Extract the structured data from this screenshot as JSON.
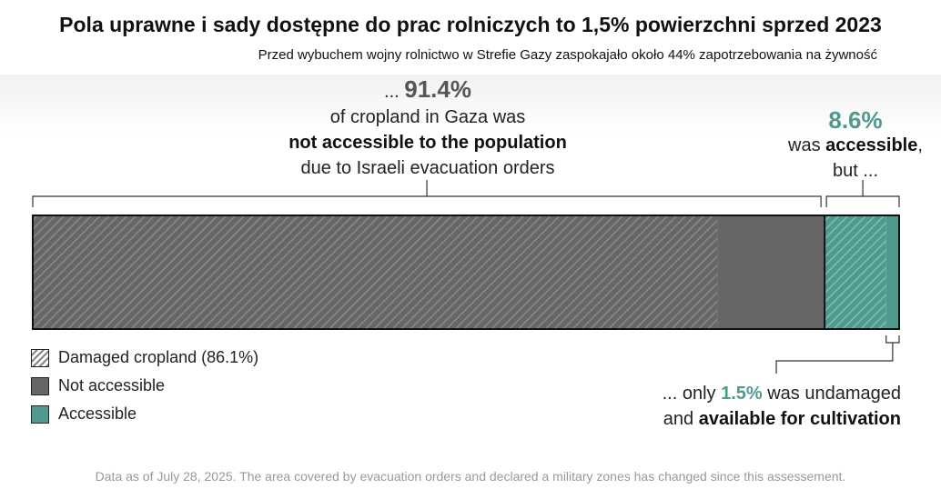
{
  "title": "Pola uprawne i sady dostępne do prac rolniczych to 1,5% powierzchni sprzed 2023",
  "subtitle": "Przed wybuchem wojny rolnictwo w Strefie Gazy zaspokajało około 44% zapotrzebowania na żywność",
  "annotations": {
    "left": {
      "prefix": "... ",
      "value": "91.4%",
      "line1": "of cropland in Gaza was",
      "line2_bold": "not accessible to the population",
      "line3": "due to Israeli evacuation orders"
    },
    "right": {
      "value": "8.6%",
      "line1_pre": "was ",
      "line1_bold": "accessible",
      "line1_post": ",",
      "line2": "but ..."
    },
    "bottom": {
      "pre": "... only ",
      "value": "1.5%",
      "post": " was undamaged",
      "line2_pre": "and ",
      "line2_bold": "available for cultivation"
    }
  },
  "legend": [
    {
      "label": "Damaged cropland (86.1%)",
      "swatch": "damaged"
    },
    {
      "label": "Not accessible",
      "swatch": "not-accessible"
    },
    {
      "label": "Accessible",
      "swatch": "accessible"
    }
  ],
  "footnote": "Data as of July 28, 2025. The area covered by evacuation orders and declared a military zones has changed since this assessement.",
  "chart_data": {
    "type": "bar",
    "orientation": "horizontal-stacked-100",
    "unit": "% of cropland area",
    "segments": [
      {
        "name": "Not accessible, damaged",
        "value": 79.0,
        "group": "not-accessible",
        "damaged": true,
        "color": "#666666"
      },
      {
        "name": "Not accessible, undamaged",
        "value": 12.4,
        "group": "not-accessible",
        "damaged": false,
        "color": "#666666"
      },
      {
        "name": "Accessible, damaged",
        "value": 7.1,
        "group": "accessible",
        "damaged": true,
        "color": "#4e9a8f"
      },
      {
        "name": "Accessible, undamaged",
        "value": 1.5,
        "group": "accessible",
        "damaged": false,
        "color": "#4e9a8f"
      }
    ],
    "totals": {
      "not_accessible": 91.4,
      "accessible": 8.6,
      "damaged": 86.1,
      "available": 1.5
    }
  }
}
